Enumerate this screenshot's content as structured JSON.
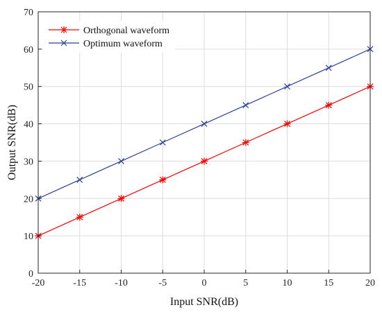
{
  "chart_data": {
    "type": "line",
    "title": "",
    "xlabel": "Input SNR(dB)",
    "ylabel": "Output SNR(dB)",
    "x": [
      -20,
      -15,
      -10,
      -5,
      0,
      5,
      10,
      15,
      20
    ],
    "xlim": [
      -20,
      20
    ],
    "ylim": [
      0,
      70
    ],
    "xticks": [
      -20,
      -15,
      -10,
      -5,
      0,
      5,
      10,
      15,
      20
    ],
    "yticks": [
      0,
      10,
      20,
      30,
      40,
      50,
      60,
      70
    ],
    "grid": true,
    "legend_position": "top-left",
    "series": [
      {
        "name": "Orthogonal waveform",
        "values": [
          10,
          15,
          20,
          25,
          30,
          35,
          40,
          45,
          50
        ],
        "color": "#ff0000",
        "marker": "asterisk"
      },
      {
        "name": "Optimum waveform",
        "values": [
          20,
          25,
          30,
          35,
          40,
          45,
          50,
          55,
          60
        ],
        "color": "#2b3f99",
        "marker": "x"
      }
    ]
  }
}
